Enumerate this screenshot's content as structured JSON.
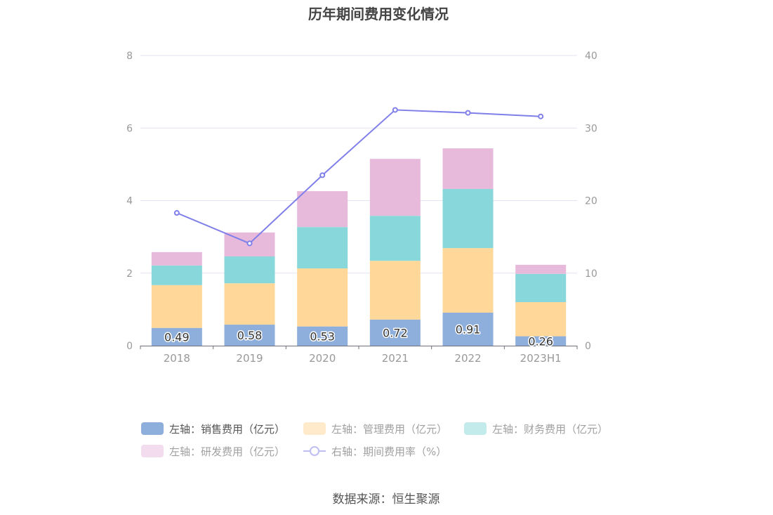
{
  "source": "数据来源：恒生聚源",
  "colors": {
    "grid": "#e3e3f2",
    "axis_line": "#6e7079",
    "tick_text": "#999999",
    "label_text": "#333333"
  },
  "chart_data": {
    "type": "bar",
    "title": "历年期间费用变化情况",
    "categories": [
      "2018",
      "2019",
      "2020",
      "2021",
      "2022",
      "2023H1"
    ],
    "y_left": {
      "ylim": [
        0,
        8
      ],
      "ticks": [
        0,
        2,
        4,
        6,
        8
      ]
    },
    "y_right": {
      "ylim": [
        0,
        40
      ],
      "ticks": [
        0,
        10,
        20,
        30,
        40
      ]
    },
    "grid": true,
    "legend": "bottom",
    "series": [
      {
        "name": "左轴：销售费用（亿元）",
        "type": "bar",
        "stack": "total",
        "axis": "left",
        "color": "#8eaedc",
        "show_labels": true,
        "values": [
          0.49,
          0.58,
          0.53,
          0.72,
          0.91,
          0.26
        ]
      },
      {
        "name": "左轴：管理费用（亿元）",
        "type": "bar",
        "stack": "total",
        "axis": "left",
        "color": "#ffd899",
        "values": [
          1.18,
          1.14,
          1.6,
          1.62,
          1.78,
          0.94
        ]
      },
      {
        "name": "左轴：财务费用（亿元）",
        "type": "bar",
        "stack": "total",
        "axis": "left",
        "color": "#88d7da",
        "values": [
          0.54,
          0.74,
          1.14,
          1.24,
          1.63,
          0.78
        ]
      },
      {
        "name": "左轴：研发费用（亿元）",
        "type": "bar",
        "stack": "total",
        "axis": "left",
        "color": "#e7badb",
        "values": [
          0.37,
          0.66,
          0.99,
          1.57,
          1.12,
          0.25
        ]
      },
      {
        "name": "右轴：期间费用率（%）",
        "type": "line",
        "axis": "right",
        "color": "#7f7fe9",
        "values": [
          18.3,
          14.1,
          23.5,
          32.5,
          32.1,
          31.6
        ]
      }
    ]
  }
}
